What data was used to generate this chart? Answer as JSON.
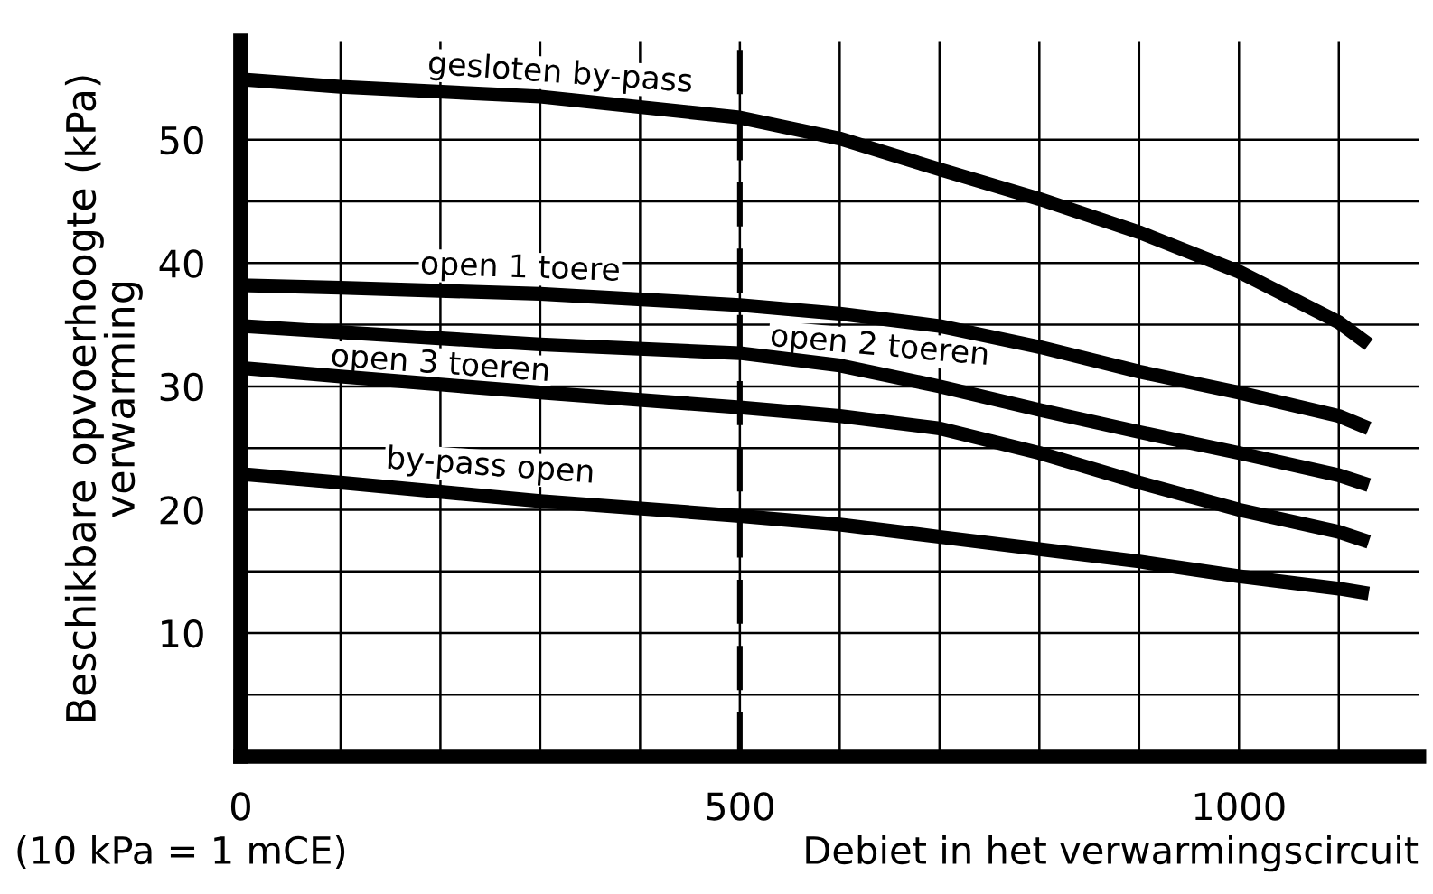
{
  "chart_data": {
    "type": "line",
    "xlabel": "Debiet in het verwarmingscircuit",
    "ylabel": "Beschikbare opvoerhoogte (kPa)\nverwarming",
    "annotations": [
      "(10 kPa = 1 mCE)"
    ],
    "xlim": [
      0,
      1180
    ],
    "ylim": [
      0,
      58
    ],
    "xticks": [
      0,
      {
        "value": 100,
        "label": null
      },
      {
        "value": 200,
        "label": null
      },
      {
        "value": 300,
        "label": null
      },
      {
        "value": 400,
        "label": null
      },
      500,
      {
        "value": 600,
        "label": null
      },
      {
        "value": 700,
        "label": null
      },
      {
        "value": 800,
        "label": null
      },
      {
        "value": 900,
        "label": null
      },
      1000,
      {
        "value": 1100,
        "label": null
      }
    ],
    "yticks": [
      {
        "value": 5,
        "label": null
      },
      10,
      {
        "value": 15,
        "label": null
      },
      20,
      {
        "value": 25,
        "label": null
      },
      30,
      {
        "value": 35,
        "label": null
      },
      40,
      {
        "value": 45,
        "label": null
      },
      50
    ],
    "grid": true,
    "legend": false,
    "marker": "none",
    "line_style": "solid",
    "ref_lines": [
      {
        "axis": "x",
        "value": 500,
        "label": null,
        "line_style": "dashed",
        "color": "#000000"
      }
    ],
    "x": [
      0,
      100,
      300,
      500,
      600,
      700,
      800,
      900,
      1000,
      1100,
      1130
    ],
    "series": [
      {
        "name": "gesloten by-pass",
        "color": "#000000",
        "values": [
          54.9,
          54.3,
          53.5,
          51.8,
          50.1,
          47.6,
          45.2,
          42.5,
          39.3,
          35.2,
          33.4
        ]
      },
      {
        "name": "open 1 toere",
        "color": "#000000",
        "values": [
          38.2,
          38.0,
          37.5,
          36.6,
          35.9,
          34.9,
          33.2,
          31.2,
          29.5,
          27.6,
          26.6
        ]
      },
      {
        "name": "open 2 toeren",
        "color": "#000000",
        "values": [
          34.9,
          34.4,
          33.4,
          32.7,
          31.7,
          30.0,
          28.1,
          26.3,
          24.6,
          22.8,
          22.0
        ]
      },
      {
        "name": "open 3 toeren",
        "color": "#000000",
        "values": [
          31.5,
          30.8,
          29.5,
          28.3,
          27.6,
          26.6,
          24.6,
          22.2,
          20.0,
          18.2,
          17.4
        ]
      },
      {
        "name": "by-pass open",
        "color": "#000000",
        "values": [
          22.9,
          22.2,
          20.7,
          19.5,
          18.8,
          17.8,
          16.8,
          15.8,
          14.6,
          13.6,
          13.2
        ]
      }
    ]
  }
}
